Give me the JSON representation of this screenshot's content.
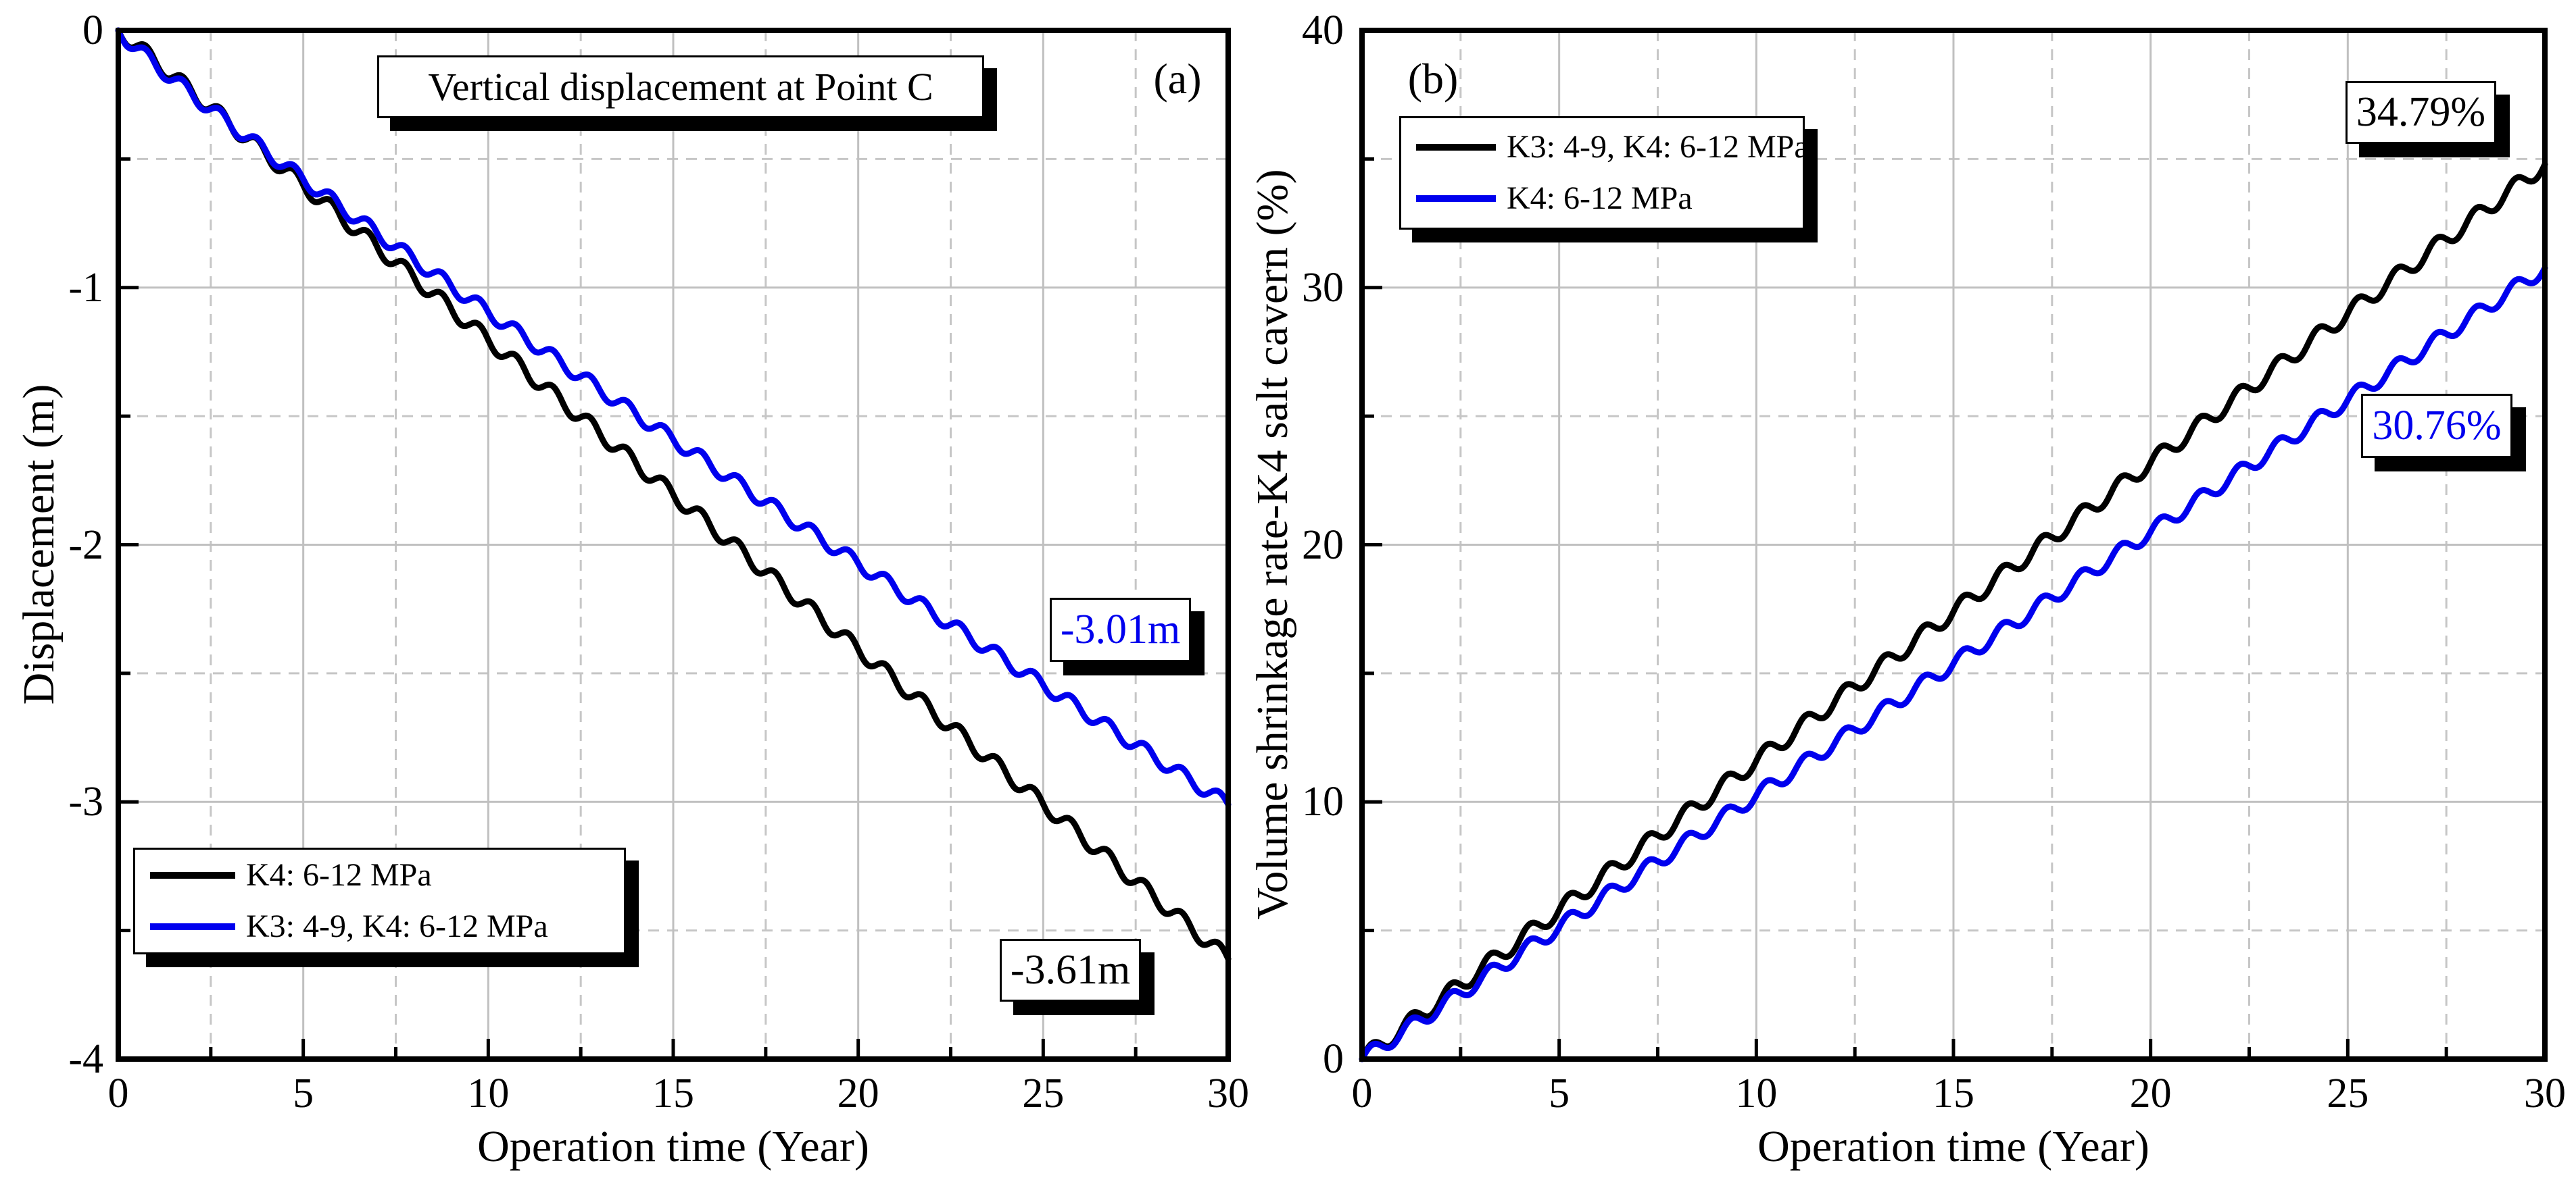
{
  "figure": {
    "background": "#ffffff",
    "accent_blue": "#0000ee",
    "grid_solid_color": "#c0c0c0",
    "grid_dashed_color": "#c6c6c6"
  },
  "chart_data": [
    {
      "id": "a",
      "type": "line",
      "corner_label": "(a)",
      "title": "Vertical displacement at Point C",
      "xlabel": "Operation time (Year)",
      "ylabel": "Displacement (m)",
      "xlim": [
        0,
        30
      ],
      "ylim": [
        -4,
        0
      ],
      "xticks": [
        "0",
        "5",
        "10",
        "15",
        "20",
        "25",
        "30"
      ],
      "yticks": [
        "0",
        "-1",
        "-2",
        "-3",
        "-4"
      ],
      "xtick_values": [
        0,
        5,
        10,
        15,
        20,
        25,
        30
      ],
      "ytick_values": [
        0,
        -1,
        -2,
        -3,
        -4
      ],
      "grid": "solid gray at major ticks, dashed at minor (2.5 yr / 0.5 m)",
      "legend_position": "lower left",
      "x_sample_years": [
        0,
        5,
        10,
        15,
        20,
        25,
        30
      ],
      "series": [
        {
          "name": "K4: 6-12 MPa",
          "color": "#000000",
          "values": [
            0,
            -0.6,
            -1.2,
            -1.81,
            -2.41,
            -3.01,
            -3.61
          ],
          "end_value": -3.61,
          "model": {
            "power": 1.0,
            "wave_amp": 0.03,
            "wave_sign": -1
          }
        },
        {
          "name": "K3: 4-9, K4: 6-12 MPa",
          "color": "#0000ee",
          "values": [
            0,
            -0.58,
            -1.1,
            -1.59,
            -2.07,
            -2.55,
            -3.01
          ],
          "end_value": -3.01,
          "model": {
            "power": 0.92,
            "wave_amp": 0.027,
            "wave_sign": -1
          }
        }
      ],
      "annotations": [
        {
          "text": "-3.61m",
          "color": "#000000"
        },
        {
          "text": "-3.01m",
          "color": "#0000ee"
        }
      ]
    },
    {
      "id": "b",
      "type": "line",
      "corner_label": "(b)",
      "title": "",
      "xlabel": "Operation time (Year)",
      "ylabel": "Volume shrinkage rate-K4 salt cavern (%)",
      "xlim": [
        0,
        30
      ],
      "ylim": [
        0,
        40
      ],
      "xticks": [
        "0",
        "5",
        "10",
        "15",
        "20",
        "25",
        "30"
      ],
      "yticks": [
        "40",
        "30",
        "20",
        "10",
        "0"
      ],
      "xtick_values": [
        0,
        5,
        10,
        15,
        20,
        25,
        30
      ],
      "ytick_values": [
        40,
        30,
        20,
        10,
        0
      ],
      "grid": "solid gray at major ticks, dashed at minor (2.5 yr / 5 %)",
      "legend_position": "upper left",
      "x_sample_years": [
        0,
        5,
        10,
        15,
        20,
        25,
        30
      ],
      "series": [
        {
          "name": "K3: 4-9, K4: 6-12 MPa",
          "color": "#000000",
          "values": [
            0,
            5.8,
            11.6,
            17.4,
            23.19,
            28.99,
            34.79
          ],
          "end_value": 34.79,
          "model": {
            "power": 1.0,
            "wave_amp": 0.32,
            "wave_sign": 1
          }
        },
        {
          "name": "K4: 6-12 MPa",
          "color": "#0000ee",
          "values": [
            0,
            5.13,
            10.25,
            15.38,
            20.51,
            25.63,
            30.76
          ],
          "end_value": 30.76,
          "model": {
            "power": 1.0,
            "wave_amp": 0.29,
            "wave_sign": 1
          }
        }
      ],
      "annotations": [
        {
          "text": "34.79%",
          "color": "#000000"
        },
        {
          "text": "30.76%",
          "color": "#0000ee"
        }
      ]
    }
  ]
}
